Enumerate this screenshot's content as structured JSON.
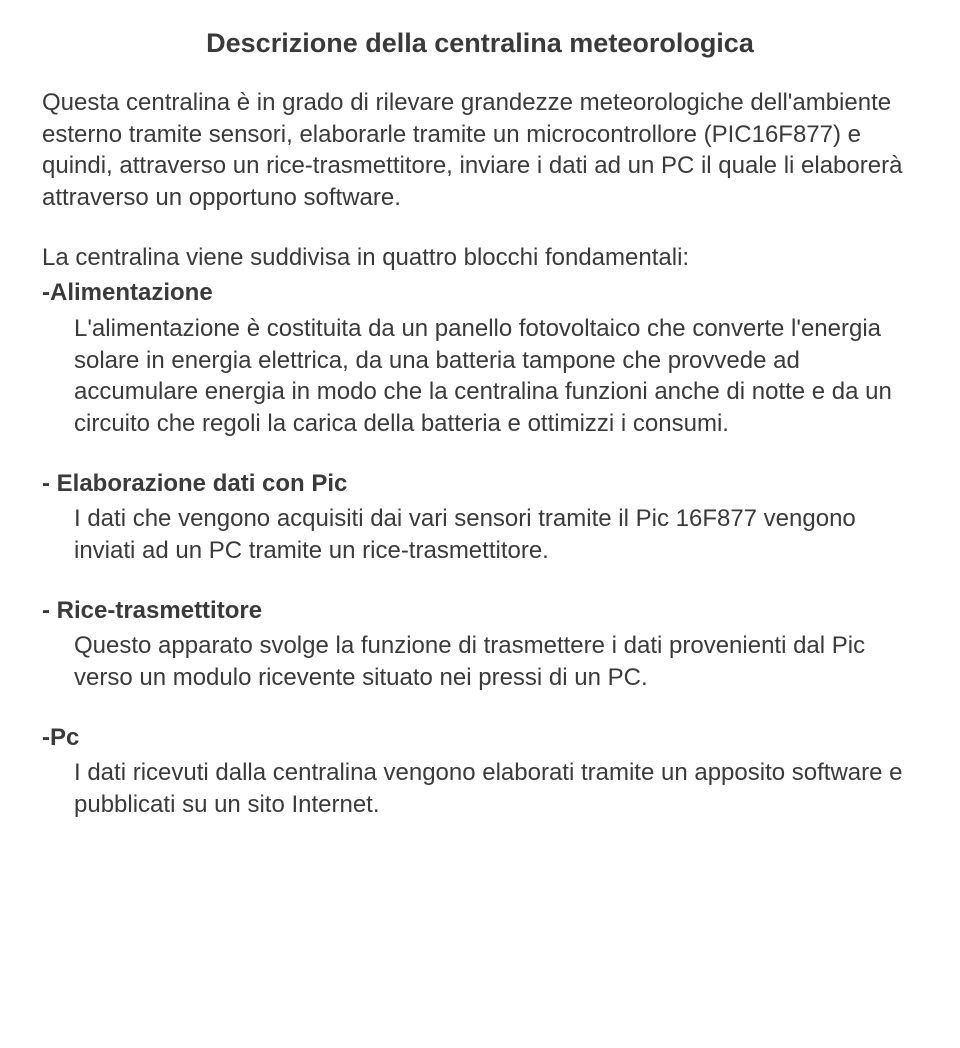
{
  "title": "Descrizione della centralina meteorologica",
  "intro": "Questa centralina è in grado di rilevare grandezze meteorologiche dell'ambiente esterno tramite sensori, elaborarle tramite un microcontrollore (PIC16F877) e quindi, attraverso un rice-trasmettitore, inviare i dati ad un PC il quale li elaborerà attraverso un opportuno software.",
  "lead": "La centralina viene suddivisa in quattro blocchi fondamentali:",
  "sections": {
    "alimentazione": {
      "heading": "-Alimentazione",
      "body": "L'alimentazione è costituita da un panello fotovoltaico che converte l'energia solare in energia elettrica, da una batteria tampone che provvede ad accumulare energia in modo che la centralina funzioni anche di notte e da un circuito che regoli la carica della batteria e ottimizzi i consumi."
    },
    "elaborazione": {
      "heading": "- Elaborazione dati con Pic",
      "body": "I dati che vengono acquisiti dai vari sensori tramite il Pic 16F877 vengono inviati ad un PC tramite un rice-trasmettitore."
    },
    "rice": {
      "heading": "- Rice-trasmettitore",
      "body": "Questo apparato svolge la funzione di trasmettere i dati provenienti dal Pic verso un modulo ricevente situato nei pressi di un PC."
    },
    "pc": {
      "heading": "-Pc",
      "body": "I dati ricevuti dalla centralina vengono elaborati tramite un apposito software e pubblicati su un sito Internet."
    }
  },
  "colors": {
    "text": "#3a3a3a",
    "background": "#ffffff"
  },
  "fonts": {
    "family": "Comic Sans MS",
    "title_size_pt": 20,
    "body_size_pt": 18
  }
}
